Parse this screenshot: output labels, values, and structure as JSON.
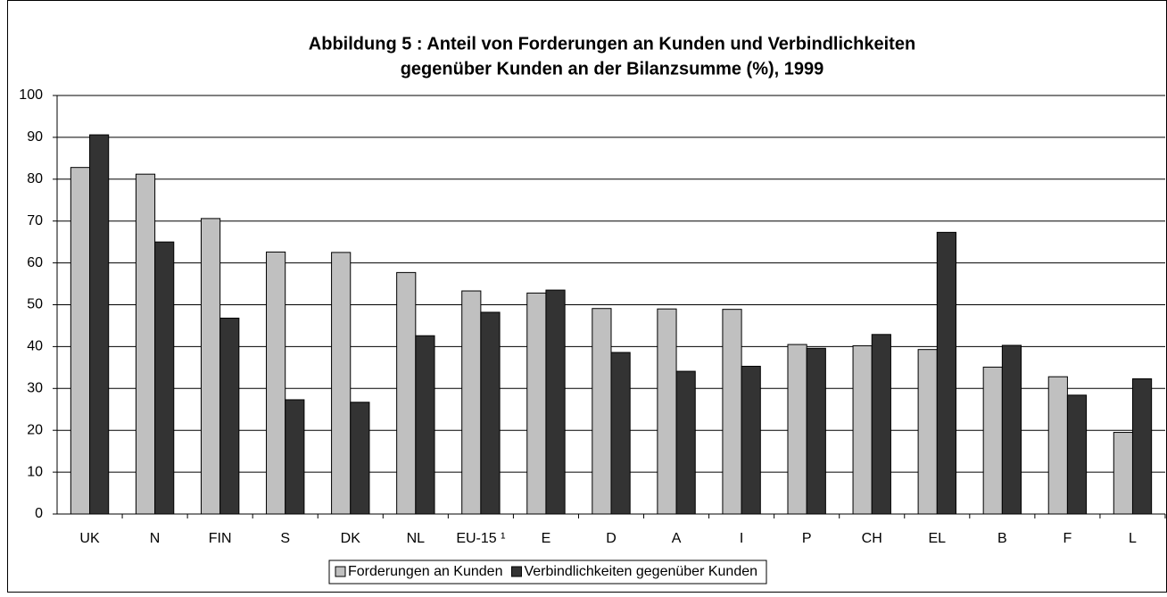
{
  "chart_data": {
    "type": "bar",
    "title": [
      "Abbildung 5 : Anteil von Forderungen an Kunden und Verbindlichkeiten",
      "gegenüber Kunden an der Bilanzsumme (%), 1999"
    ],
    "categories": [
      "UK",
      "N",
      "FIN",
      "S",
      "DK",
      "NL",
      "EU-15 ¹",
      "E",
      "D",
      "A",
      "I",
      "P",
      "CH",
      "EL",
      "B",
      "F",
      "L"
    ],
    "series": [
      {
        "name": "Forderungen an Kunden",
        "color": "#c0c0c0",
        "values": [
          82.8,
          81.2,
          70.6,
          62.6,
          62.5,
          57.7,
          53.3,
          52.8,
          49.1,
          49.0,
          48.9,
          40.5,
          40.2,
          39.3,
          35.1,
          32.8,
          19.5
        ]
      },
      {
        "name": "Verbindlichkeiten gegenüber Kunden",
        "color": "#333333",
        "values": [
          90.6,
          65.0,
          46.8,
          27.3,
          26.7,
          42.6,
          48.2,
          53.5,
          38.6,
          34.1,
          35.3,
          39.6,
          42.9,
          67.3,
          40.3,
          28.4,
          32.3
        ]
      }
    ],
    "ylim": [
      0,
      100
    ],
    "yticks": [
      0,
      10,
      20,
      30,
      40,
      50,
      60,
      70,
      80,
      90,
      100
    ],
    "grid": true,
    "legend": "bottom"
  }
}
